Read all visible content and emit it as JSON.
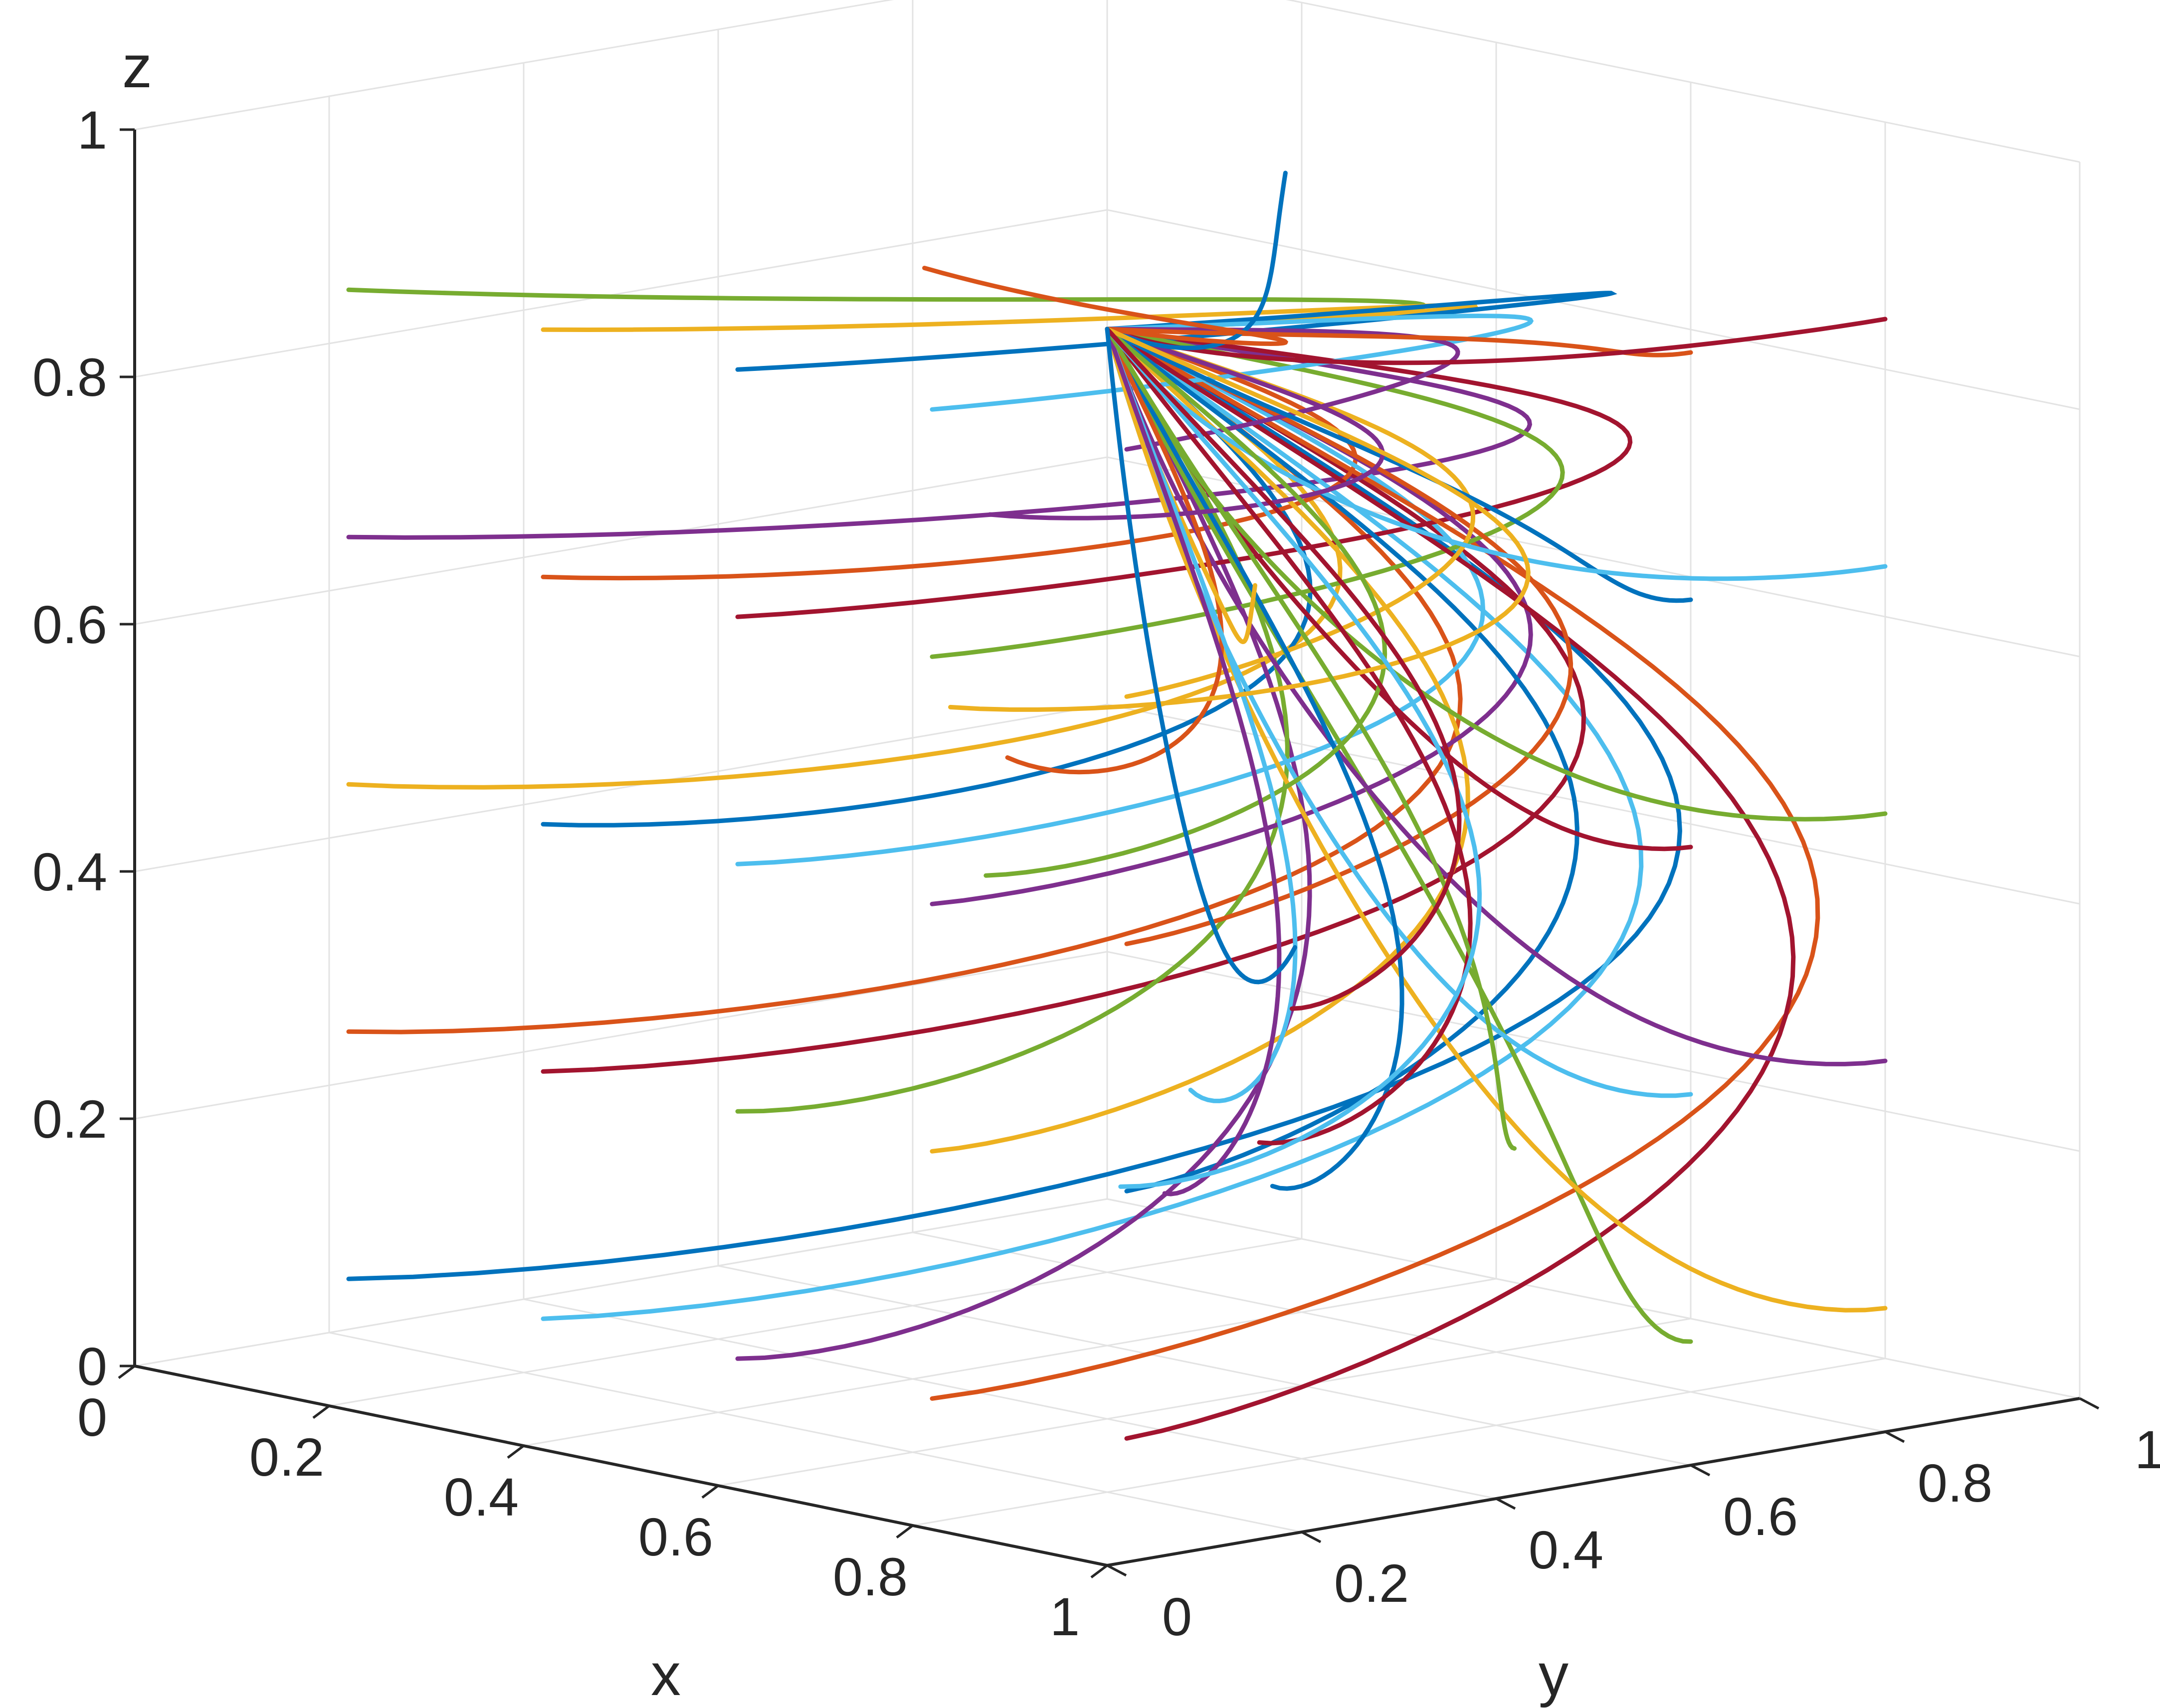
{
  "chart_data": {
    "type": "line3d",
    "title": "",
    "xlabel": "x",
    "ylabel": "y",
    "zlabel": "z",
    "xlim": [
      0,
      1
    ],
    "ylim": [
      0,
      1
    ],
    "zlim": [
      0,
      1
    ],
    "x_ticks": [
      "0",
      "0.2",
      "0.4",
      "0.6",
      "0.8",
      "1"
    ],
    "y_ticks": [
      "0",
      "0.2",
      "0.4",
      "0.6",
      "0.8",
      "1"
    ],
    "z_ticks": [
      "0",
      "0.2",
      "0.4",
      "0.6",
      "0.8",
      "1"
    ],
    "grid": true,
    "legend": "none",
    "convergence_point": {
      "x": 1,
      "y": 0,
      "z": 1
    },
    "start_plane_x_values": [
      0.2,
      0.4,
      0.6,
      0.8,
      1.0
    ],
    "start_plane_y_values": [
      0.6,
      0.8
    ],
    "start_z_values": [
      0.1,
      0.3,
      0.5,
      0.7,
      0.9
    ],
    "trajectory_count": 50,
    "color_order": [
      "#0072BD",
      "#D95319",
      "#EDB120",
      "#7E2F8E",
      "#77AC30",
      "#4DBEEE",
      "#A2142F"
    ]
  }
}
